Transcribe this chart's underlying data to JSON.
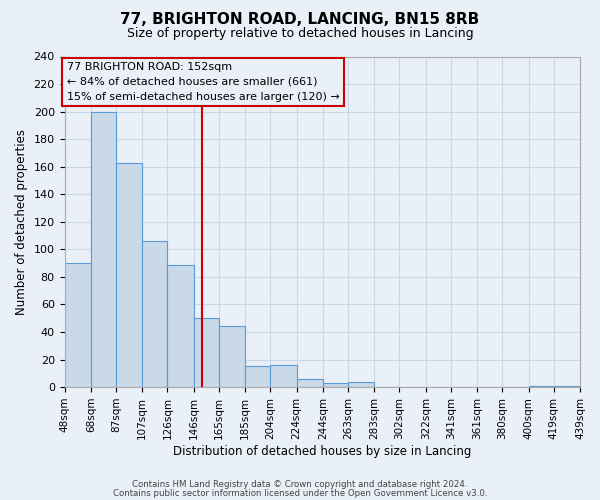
{
  "title": "77, BRIGHTON ROAD, LANCING, BN15 8RB",
  "subtitle": "Size of property relative to detached houses in Lancing",
  "xlabel": "Distribution of detached houses by size in Lancing",
  "ylabel": "Number of detached properties",
  "footnote1": "Contains HM Land Registry data © Crown copyright and database right 2024.",
  "footnote2": "Contains public sector information licensed under the Open Government Licence v3.0.",
  "bar_left_edges": [
    48,
    68,
    87,
    107,
    126,
    146,
    165,
    185,
    204,
    224,
    244,
    263,
    283,
    302,
    322,
    341,
    361,
    380,
    400,
    419
  ],
  "bar_right_edges": [
    68,
    87,
    107,
    126,
    146,
    165,
    185,
    204,
    224,
    244,
    263,
    283,
    302,
    322,
    341,
    361,
    380,
    400,
    419,
    439
  ],
  "bar_heights": [
    90,
    200,
    163,
    106,
    89,
    50,
    44,
    15,
    16,
    6,
    3,
    4,
    0,
    0,
    0,
    0,
    0,
    0,
    1,
    1
  ],
  "bar_color": "#c9d9e8",
  "bar_edge_color": "#5b9bd5",
  "vline_x": 152,
  "vline_color": "#cc0000",
  "annotation_title": "77 BRIGHTON ROAD: 152sqm",
  "annotation_line1": "← 84% of detached houses are smaller (661)",
  "annotation_line2": "15% of semi-detached houses are larger (120) →",
  "annotation_box_edge": "#cc0000",
  "ylim": [
    0,
    240
  ],
  "yticks": [
    0,
    20,
    40,
    60,
    80,
    100,
    120,
    140,
    160,
    180,
    200,
    220,
    240
  ],
  "xtick_positions": [
    48,
    68,
    87,
    107,
    126,
    146,
    165,
    185,
    204,
    224,
    244,
    263,
    283,
    302,
    322,
    341,
    361,
    380,
    400,
    419,
    439
  ],
  "xtick_labels": [
    "48sqm",
    "68sqm",
    "87sqm",
    "107sqm",
    "126sqm",
    "146sqm",
    "165sqm",
    "185sqm",
    "204sqm",
    "224sqm",
    "244sqm",
    "263sqm",
    "283sqm",
    "302sqm",
    "322sqm",
    "341sqm",
    "361sqm",
    "380sqm",
    "400sqm",
    "419sqm",
    "439sqm"
  ],
  "xlim": [
    48,
    439
  ],
  "grid_color": "#c8d8e8",
  "background_color": "#eaf0f7"
}
